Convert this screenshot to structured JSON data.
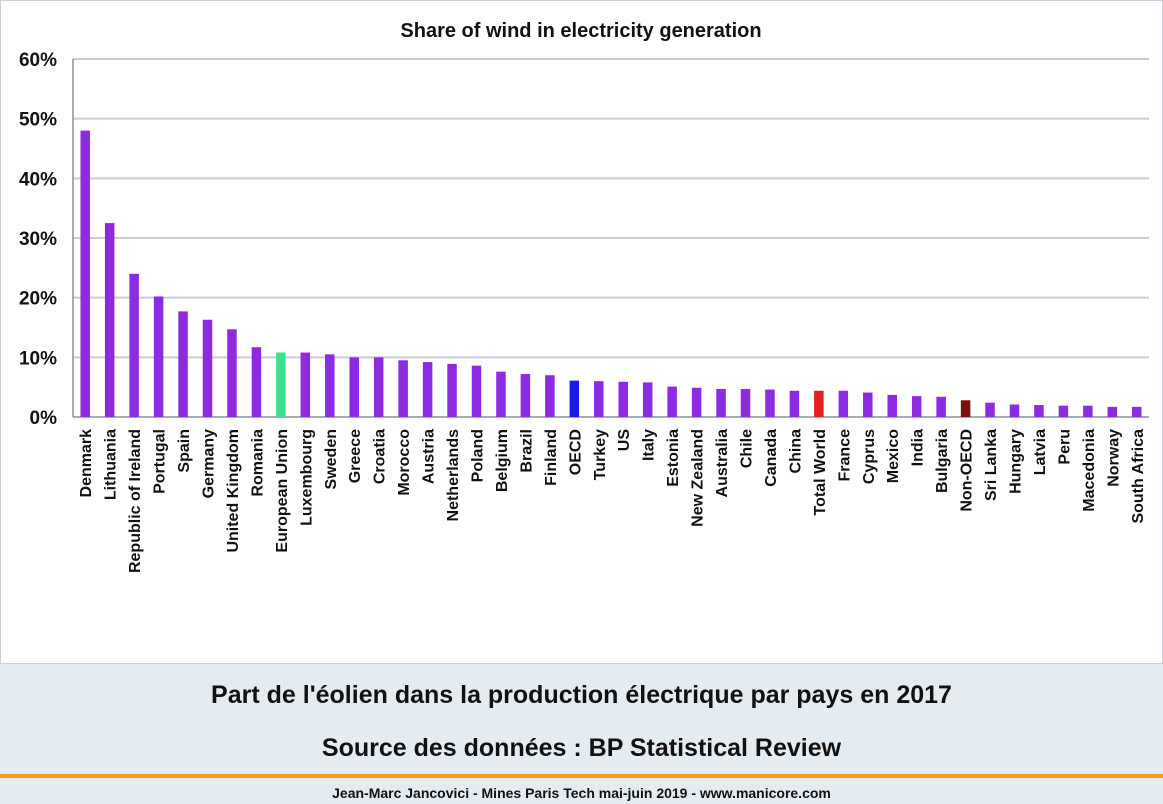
{
  "caption": {
    "line1": "Part de l'éolien dans la production électrique par pays en 2017",
    "line2": "Source des données : BP Statistical Review"
  },
  "footer": "Jean-Marc Jancovici - Mines Paris Tech mai-juin 2019 - www.manicore.com",
  "chart_data": {
    "type": "bar",
    "title": "Share of wind in electricity generation",
    "xlabel": "",
    "ylabel": "",
    "ylim": [
      0,
      60
    ],
    "yticks": [
      0,
      10,
      20,
      30,
      40,
      50,
      60
    ],
    "ytick_labels": [
      "0%",
      "10%",
      "20%",
      "30%",
      "40%",
      "50%",
      "60%"
    ],
    "grid": true,
    "legend": "none",
    "categories": [
      "Denmark",
      "Lithuania",
      "Republic of Ireland",
      "Portugal",
      "Spain",
      "Germany",
      "United Kingdom",
      "Romania",
      "European Union",
      "Luxembourg",
      "Sweden",
      "Greece",
      "Croatia",
      "Morocco",
      "Austria",
      "Netherlands",
      "Poland",
      "Belgium",
      "Brazil",
      "Finland",
      "OECD",
      "Turkey",
      "US",
      "Italy",
      "Estonia",
      "New Zealand",
      "Australia",
      "Chile",
      "Canada",
      "China",
      "Total World",
      "France",
      "Cyprus",
      "Mexico",
      "India",
      "Bulgaria",
      "Non-OECD",
      "Sri Lanka",
      "Hungary",
      "Latvia",
      "Peru",
      "Macedonia",
      "Norway",
      "South Africa"
    ],
    "values": [
      48.0,
      32.5,
      24.0,
      20.2,
      17.7,
      16.3,
      14.7,
      11.7,
      10.8,
      10.8,
      10.5,
      10.0,
      10.0,
      9.5,
      9.2,
      8.9,
      8.6,
      7.6,
      7.2,
      7.0,
      6.1,
      6.0,
      5.9,
      5.8,
      5.1,
      4.9,
      4.7,
      4.7,
      4.6,
      4.4,
      4.4,
      4.4,
      4.1,
      3.7,
      3.5,
      3.4,
      2.8,
      2.4,
      2.1,
      2.0,
      1.9,
      1.9,
      1.7,
      1.7
    ],
    "colors": {
      "default": "#8c2be2",
      "European Union": "#3ee08f",
      "OECD": "#1a1ae6",
      "Total World": "#e62020",
      "Non-OECD": "#7a1010"
    }
  }
}
